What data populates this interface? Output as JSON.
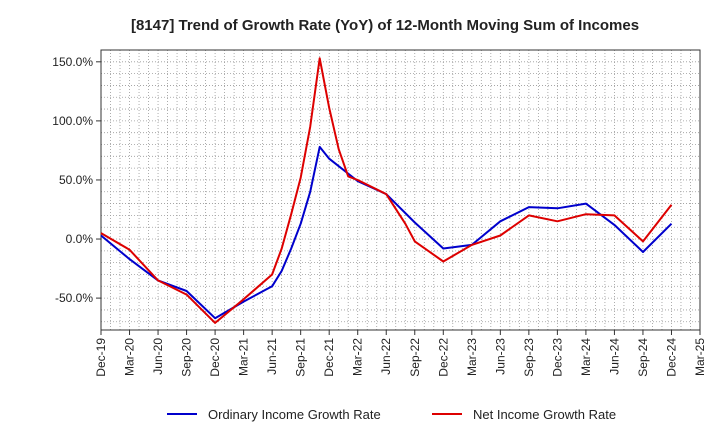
{
  "chart_data": {
    "type": "line",
    "title": "[8147]  Trend of Growth Rate (YoY) of 12-Month Moving Sum of Incomes",
    "xlabel": "",
    "ylabel": "",
    "ylim": [
      -77,
      160
    ],
    "grid": true,
    "legend_position": "bottom",
    "x": [
      "Dec-19",
      "Jan-20",
      "Feb-20",
      "Mar-20",
      "Apr-20",
      "May-20",
      "Jun-20",
      "Jul-20",
      "Aug-20",
      "Sep-20",
      "Oct-20",
      "Nov-20",
      "Dec-20",
      "Jan-21",
      "Feb-21",
      "Mar-21",
      "Apr-21",
      "May-21",
      "Jun-21",
      "Jul-21",
      "Aug-21",
      "Sep-21",
      "Oct-21",
      "Nov-21",
      "Dec-21",
      "Jan-22",
      "Feb-22",
      "Mar-22",
      "Apr-22",
      "May-22",
      "Jun-22",
      "Jul-22",
      "Aug-22",
      "Sep-22",
      "Oct-22",
      "Nov-22",
      "Dec-22",
      "Jan-23",
      "Feb-23",
      "Mar-23",
      "Apr-23",
      "May-23",
      "Jun-23",
      "Jul-23",
      "Aug-23",
      "Sep-23",
      "Oct-23",
      "Nov-23",
      "Dec-23",
      "Jan-24",
      "Feb-24",
      "Mar-24",
      "Apr-24",
      "May-24",
      "Jun-24",
      "Jul-24",
      "Aug-24",
      "Sep-24",
      "Oct-24",
      "Nov-24",
      "Dec-24",
      "Jan-25",
      "Feb-25",
      "Mar-25"
    ],
    "xticks": [
      "Dec-19",
      "Mar-20",
      "Jun-20",
      "Sep-20",
      "Dec-20",
      "Mar-21",
      "Jun-21",
      "Sep-21",
      "Dec-21",
      "Mar-22",
      "Jun-22",
      "Sep-22",
      "Dec-22",
      "Mar-23",
      "Jun-23",
      "Sep-23",
      "Dec-23",
      "Mar-24",
      "Jun-24",
      "Sep-24",
      "Dec-24",
      "Mar-25"
    ],
    "yticks": [
      150,
      100,
      50,
      0,
      -50
    ],
    "ytick_labels": [
      "150.0%",
      "100.0%",
      "50.0%",
      "0.0%",
      "-50.0%"
    ],
    "series": [
      {
        "name": "Ordinary Income Growth Rate",
        "color": "#0000cc",
        "points": [
          {
            "x": "Dec-19",
            "y": 3
          },
          {
            "x": "Mar-20",
            "y": -17
          },
          {
            "x": "Jun-20",
            "y": -35
          },
          {
            "x": "Sep-20",
            "y": -44
          },
          {
            "x": "Dec-20",
            "y": -67
          },
          {
            "x": "Mar-21",
            "y": -53
          },
          {
            "x": "Jun-21",
            "y": -40
          },
          {
            "x": "Jul-21",
            "y": -27
          },
          {
            "x": "Aug-21",
            "y": -8
          },
          {
            "x": "Sep-21",
            "y": 13
          },
          {
            "x": "Oct-21",
            "y": 40
          },
          {
            "x": "Nov-21",
            "y": 78
          },
          {
            "x": "Dec-21",
            "y": 68
          },
          {
            "x": "Mar-22",
            "y": 49
          },
          {
            "x": "Jun-22",
            "y": 38
          },
          {
            "x": "Sep-22",
            "y": 14
          },
          {
            "x": "Dec-22",
            "y": -8
          },
          {
            "x": "Mar-23",
            "y": -5
          },
          {
            "x": "Jun-23",
            "y": 15
          },
          {
            "x": "Sep-23",
            "y": 27
          },
          {
            "x": "Dec-23",
            "y": 26
          },
          {
            "x": "Mar-24",
            "y": 30
          },
          {
            "x": "Jun-24",
            "y": 12
          },
          {
            "x": "Sep-24",
            "y": -11
          },
          {
            "x": "Dec-24",
            "y": 13
          }
        ]
      },
      {
        "name": "Net Income Growth Rate",
        "color": "#dd0000",
        "points": [
          {
            "x": "Dec-19",
            "y": 5
          },
          {
            "x": "Mar-20",
            "y": -9
          },
          {
            "x": "Jun-20",
            "y": -35
          },
          {
            "x": "Sep-20",
            "y": -47
          },
          {
            "x": "Dec-20",
            "y": -71
          },
          {
            "x": "Mar-21",
            "y": -51
          },
          {
            "x": "Jun-21",
            "y": -30
          },
          {
            "x": "Jul-21",
            "y": -8
          },
          {
            "x": "Aug-21",
            "y": 21
          },
          {
            "x": "Sep-21",
            "y": 52
          },
          {
            "x": "Oct-21",
            "y": 95
          },
          {
            "x": "Nov-21",
            "y": 153
          },
          {
            "x": "Dec-21",
            "y": 111
          },
          {
            "x": "Jan-22",
            "y": 76
          },
          {
            "x": "Feb-22",
            "y": 53
          },
          {
            "x": "Mar-22",
            "y": 50
          },
          {
            "x": "Jun-22",
            "y": 38
          },
          {
            "x": "Aug-22",
            "y": 13
          },
          {
            "x": "Sep-22",
            "y": -2
          },
          {
            "x": "Dec-22",
            "y": -19
          },
          {
            "x": "Mar-23",
            "y": -5
          },
          {
            "x": "Jun-23",
            "y": 3
          },
          {
            "x": "Sep-23",
            "y": 20
          },
          {
            "x": "Dec-23",
            "y": 15
          },
          {
            "x": "Mar-24",
            "y": 21
          },
          {
            "x": "Jun-24",
            "y": 20
          },
          {
            "x": "Sep-24",
            "y": -2
          },
          {
            "x": "Dec-24",
            "y": 29
          }
        ]
      }
    ]
  }
}
